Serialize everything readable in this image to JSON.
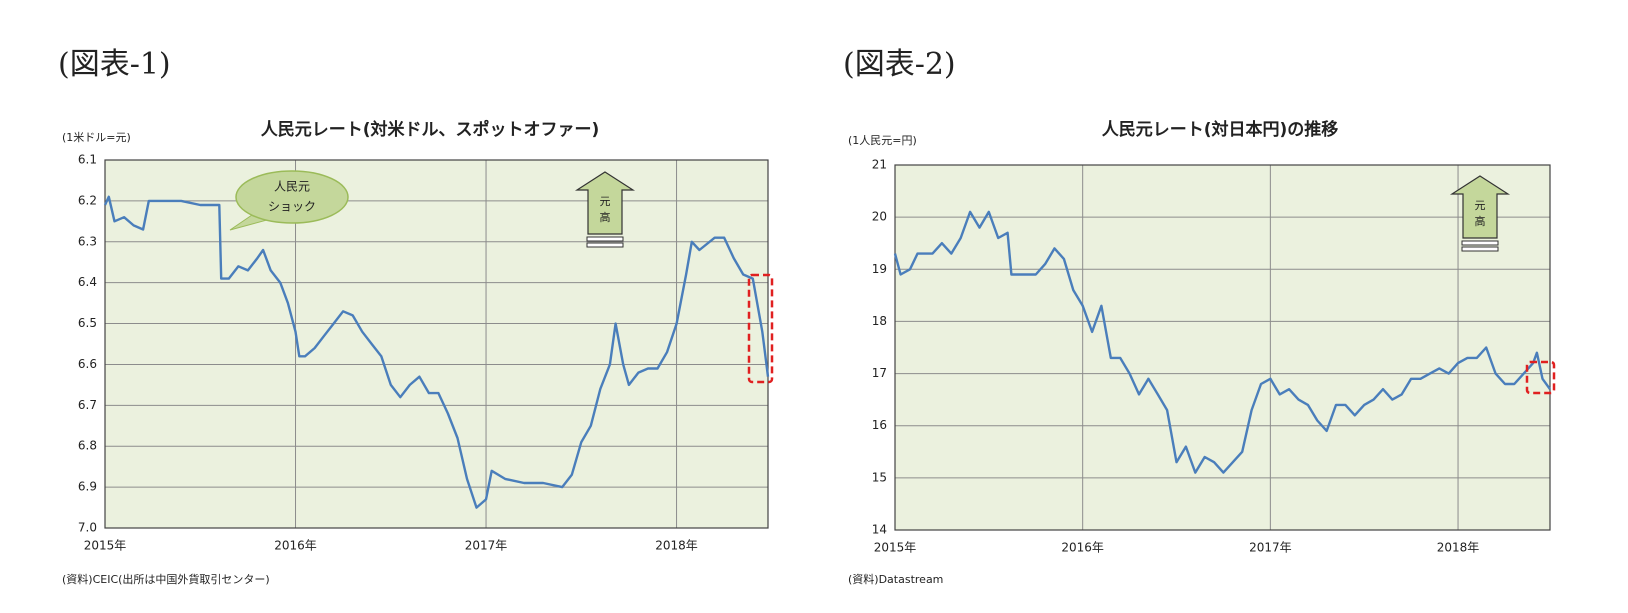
{
  "chart_data": [
    {
      "type": "line",
      "heading": "(図表-1)",
      "title": "人民元レート(対米ドル、スポットオファー)",
      "y_unit_label": "(1米ドル=元)",
      "source": "(資料)CEIC(出所は中国外貨取引センター)",
      "color": "#4a7ebb",
      "plot_background": "#ebf1de",
      "grid": true,
      "y_inverted": true,
      "xlim": [
        2015,
        2018.48
      ],
      "xticks": [
        {
          "value": 2015,
          "label": "2015年"
        },
        {
          "value": 2016,
          "label": "2016年"
        },
        {
          "value": 2017,
          "label": "2017年"
        },
        {
          "value": 2018,
          "label": "2018年"
        }
      ],
      "ylim": [
        6.1,
        7.0
      ],
      "yticks": [
        6.1,
        6.2,
        6.3,
        6.4,
        6.5,
        6.6,
        6.7,
        6.8,
        6.9,
        {
          "value": 7.0,
          "label": "7.0"
        }
      ],
      "annotations": [
        {
          "kind": "callout",
          "lines": [
            "人民元",
            "ショック"
          ]
        },
        {
          "kind": "arrow",
          "lines": [
            "元",
            "高"
          ]
        }
      ],
      "x": [
        2015.0,
        2015.02,
        2015.05,
        2015.1,
        2015.15,
        2015.2,
        2015.23,
        2015.3,
        2015.4,
        2015.5,
        2015.6,
        2015.61,
        2015.65,
        2015.7,
        2015.75,
        2015.8,
        2015.83,
        2015.87,
        2015.92,
        2015.96,
        2016.0,
        2016.02,
        2016.05,
        2016.1,
        2016.15,
        2016.2,
        2016.25,
        2016.3,
        2016.35,
        2016.4,
        2016.45,
        2016.5,
        2016.55,
        2016.6,
        2016.65,
        2016.7,
        2016.75,
        2016.8,
        2016.85,
        2016.9,
        2016.95,
        2017.0,
        2017.03,
        2017.1,
        2017.2,
        2017.3,
        2017.4,
        2017.45,
        2017.5,
        2017.55,
        2017.6,
        2017.65,
        2017.68,
        2017.72,
        2017.75,
        2017.8,
        2017.85,
        2017.9,
        2017.95,
        2018.0,
        2018.05,
        2018.08,
        2018.12,
        2018.2,
        2018.25,
        2018.3,
        2018.35,
        2018.4,
        2018.45,
        2018.48
      ],
      "values": [
        6.21,
        6.19,
        6.25,
        6.24,
        6.26,
        6.27,
        6.2,
        6.2,
        6.2,
        6.21,
        6.21,
        6.39,
        6.39,
        6.36,
        6.37,
        6.34,
        6.32,
        6.37,
        6.4,
        6.45,
        6.52,
        6.58,
        6.58,
        6.56,
        6.53,
        6.5,
        6.47,
        6.48,
        6.52,
        6.55,
        6.58,
        6.65,
        6.68,
        6.65,
        6.63,
        6.67,
        6.67,
        6.72,
        6.78,
        6.88,
        6.95,
        6.93,
        6.86,
        6.88,
        6.89,
        6.89,
        6.9,
        6.87,
        6.79,
        6.75,
        6.66,
        6.6,
        6.5,
        6.6,
        6.65,
        6.62,
        6.61,
        6.61,
        6.57,
        6.5,
        6.38,
        6.3,
        6.32,
        6.29,
        6.29,
        6.34,
        6.38,
        6.39,
        6.52,
        6.63
      ]
    },
    {
      "type": "line",
      "heading": "(図表-2)",
      "title": "人民元レート(対日本円)の推移",
      "y_unit_label": "(1人民元=円)",
      "source": "(資料)Datastream",
      "color": "#4a7ebb",
      "plot_background": "#ebf1de",
      "grid": true,
      "y_inverted": false,
      "xlim": [
        2015,
        2018.49
      ],
      "xticks": [
        {
          "value": 2015,
          "label": "2015年"
        },
        {
          "value": 2016,
          "label": "2016年"
        },
        {
          "value": 2017,
          "label": "2017年"
        },
        {
          "value": 2018,
          "label": "2018年"
        }
      ],
      "ylim": [
        14,
        21
      ],
      "yticks": [
        14,
        15,
        16,
        17,
        18,
        19,
        20,
        21
      ],
      "annotations": [
        {
          "kind": "arrow",
          "lines": [
            "元",
            "高"
          ]
        }
      ],
      "x": [
        2015.0,
        2015.03,
        2015.08,
        2015.12,
        2015.2,
        2015.25,
        2015.3,
        2015.35,
        2015.4,
        2015.45,
        2015.5,
        2015.55,
        2015.6,
        2015.62,
        2015.7,
        2015.75,
        2015.8,
        2015.85,
        2015.9,
        2015.95,
        2016.0,
        2016.05,
        2016.1,
        2016.15,
        2016.2,
        2016.25,
        2016.3,
        2016.35,
        2016.4,
        2016.45,
        2016.5,
        2016.55,
        2016.6,
        2016.65,
        2016.7,
        2016.75,
        2016.8,
        2016.85,
        2016.9,
        2016.95,
        2017.0,
        2017.05,
        2017.1,
        2017.15,
        2017.2,
        2017.25,
        2017.3,
        2017.35,
        2017.4,
        2017.45,
        2017.5,
        2017.55,
        2017.6,
        2017.65,
        2017.7,
        2017.75,
        2017.8,
        2017.85,
        2017.9,
        2017.95,
        2018.0,
        2018.05,
        2018.1,
        2018.15,
        2018.2,
        2018.25,
        2018.3,
        2018.35,
        2018.4,
        2018.42,
        2018.45,
        2018.49
      ],
      "values": [
        19.3,
        18.9,
        19.0,
        19.3,
        19.3,
        19.5,
        19.3,
        19.6,
        20.1,
        19.8,
        20.1,
        19.6,
        19.7,
        18.9,
        18.9,
        18.9,
        19.1,
        19.4,
        19.2,
        18.6,
        18.3,
        17.8,
        18.3,
        17.3,
        17.3,
        17.0,
        16.6,
        16.9,
        16.6,
        16.3,
        15.3,
        15.6,
        15.1,
        15.4,
        15.3,
        15.1,
        15.3,
        15.5,
        16.3,
        16.8,
        16.9,
        16.6,
        16.7,
        16.5,
        16.4,
        16.1,
        15.9,
        16.4,
        16.4,
        16.2,
        16.4,
        16.5,
        16.7,
        16.5,
        16.6,
        16.9,
        16.9,
        17.0,
        17.1,
        17.0,
        17.2,
        17.3,
        17.3,
        17.5,
        17.0,
        16.8,
        16.8,
        17.0,
        17.2,
        17.4,
        16.9,
        16.7
      ]
    }
  ]
}
